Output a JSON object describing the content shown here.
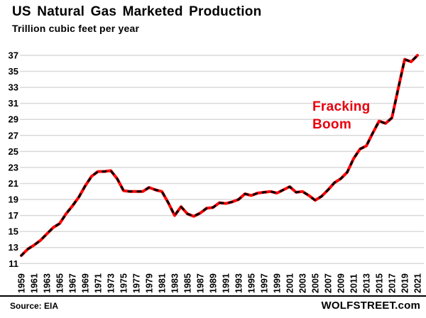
{
  "header": {
    "title": "US Natural Gas Marketed Production",
    "subtitle": "Trillion cubic feet per year"
  },
  "annotation": {
    "line1": "Fracking",
    "line2": "Boom",
    "color": "#e8000d"
  },
  "footer": {
    "source": "Source: EIA",
    "brand": "WOLFSTREET.com"
  },
  "colors": {
    "line": "#fe0000",
    "dash_overlay": "#000000",
    "grid": "#d9d9d9",
    "text": "#000000",
    "background": "#ffffff"
  },
  "chart_data": {
    "type": "line",
    "title": "US Natural Gas Marketed Production",
    "ylabel": "Trillion cubic feet per year",
    "xlabel": "",
    "ylim": [
      11,
      37
    ],
    "grid": "horizontal",
    "legend_position": "none",
    "y_ticks": [
      11,
      13,
      15,
      17,
      19,
      21,
      23,
      25,
      27,
      29,
      31,
      33,
      35,
      37
    ],
    "x_tick_labels": [
      "1959",
      "1961",
      "1963",
      "1965",
      "1967",
      "1969",
      "1971",
      "1973",
      "1975",
      "1977",
      "1979",
      "1981",
      "1983",
      "1985",
      "1987",
      "1989",
      "1991",
      "1993",
      "1995",
      "1997",
      "1999",
      "2001",
      "2003",
      "2005",
      "2007",
      "2009",
      "2011",
      "2013",
      "2015",
      "2017",
      "2019",
      "2021"
    ],
    "x": [
      1959,
      1960,
      1961,
      1962,
      1963,
      1964,
      1965,
      1966,
      1967,
      1968,
      1969,
      1970,
      1971,
      1972,
      1973,
      1974,
      1975,
      1976,
      1977,
      1978,
      1979,
      1980,
      1981,
      1982,
      1983,
      1984,
      1985,
      1986,
      1987,
      1988,
      1989,
      1990,
      1991,
      1992,
      1993,
      1994,
      1995,
      1996,
      1997,
      1998,
      1999,
      2000,
      2001,
      2002,
      2003,
      2004,
      2005,
      2006,
      2007,
      2008,
      2009,
      2010,
      2011,
      2012,
      2013,
      2014,
      2015,
      2016,
      2017,
      2018,
      2019,
      2020,
      2021
    ],
    "series": [
      {
        "name": "US natural gas marketed production (trillion cubic feet per year)",
        "values": [
          12.0,
          12.8,
          13.3,
          13.9,
          14.7,
          15.5,
          16.0,
          17.2,
          18.2,
          19.3,
          20.7,
          21.9,
          22.5,
          22.5,
          22.6,
          21.6,
          20.1,
          20.0,
          20.0,
          20.0,
          20.5,
          20.2,
          20.0,
          18.6,
          17.0,
          18.1,
          17.2,
          16.9,
          17.3,
          17.9,
          18.0,
          18.6,
          18.5,
          18.7,
          19.0,
          19.7,
          19.5,
          19.8,
          19.9,
          20.0,
          19.8,
          20.2,
          20.6,
          19.9,
          20.0,
          19.5,
          18.9,
          19.4,
          20.2,
          21.1,
          21.6,
          22.4,
          24.1,
          25.3,
          25.7,
          27.3,
          28.8,
          28.5,
          29.2,
          32.9,
          36.5,
          36.2,
          37.0
        ]
      }
    ],
    "annotations": [
      {
        "text": "Fracking Boom",
        "x": 2008.5,
        "y": 30.5
      }
    ]
  }
}
